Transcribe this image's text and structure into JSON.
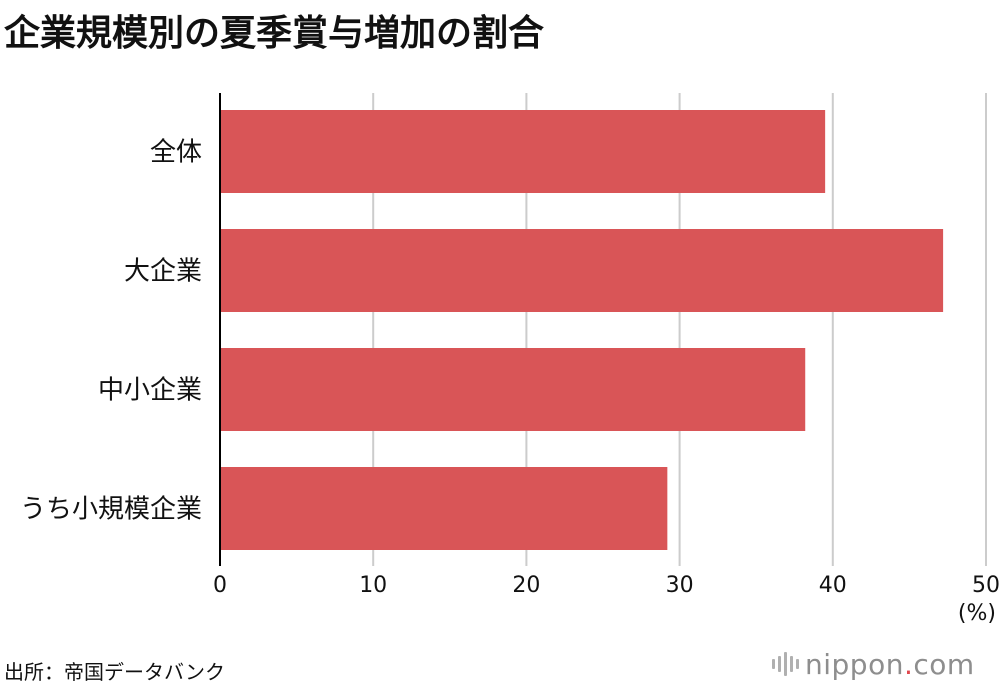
{
  "title": "企業規模別の夏季賞与増加の割合",
  "source": "出所：帝国データバンク",
  "logo": {
    "name": "nippon",
    "dot": ".",
    "tld": "com"
  },
  "colors": {
    "bar": "#d95557",
    "grid": "#cccccc",
    "axis": "#000000"
  },
  "chart_data": {
    "type": "bar",
    "orientation": "horizontal",
    "categories": [
      "全体",
      "大企業",
      "中小企業",
      "うち小規模企業"
    ],
    "values": [
      39.5,
      47.2,
      38.2,
      29.2
    ],
    "xlim": [
      0,
      50
    ],
    "xticks": [
      0,
      10,
      20,
      30,
      40,
      50
    ],
    "unit": "(%)",
    "grid": true
  }
}
